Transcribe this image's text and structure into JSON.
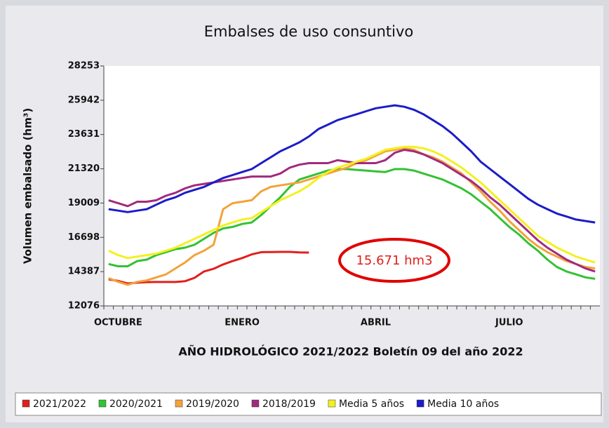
{
  "chart_data": {
    "type": "line",
    "title": "Embalses de uso consuntivo",
    "y_label": "Volumen embalsado (hm³)",
    "x_label": "AÑO HIDROLÓGICO 2021/2022 Boletín 09 del año 2022",
    "annotation": "15.671 hm3",
    "categories": [
      null,
      "OCTUBRE",
      null,
      null,
      null,
      null,
      null,
      null,
      null,
      null,
      null,
      null,
      null,
      null,
      "ENERO",
      null,
      null,
      null,
      null,
      null,
      null,
      null,
      null,
      null,
      null,
      null,
      null,
      null,
      "ABRIL",
      null,
      null,
      null,
      null,
      null,
      null,
      null,
      null,
      null,
      null,
      null,
      null,
      null,
      "JULIO",
      null,
      null,
      null,
      null,
      null,
      null,
      null,
      null,
      null
    ],
    "ylim": [
      12076,
      28253
    ],
    "yticks": [
      12076,
      14387,
      16698,
      19009,
      21320,
      23631,
      25942,
      28253
    ],
    "legend": "bottom",
    "series": [
      {
        "name": "2021/2022",
        "color": "#e0201c",
        "values": [
          13870,
          13760,
          13590,
          13640,
          13680,
          13690,
          13690,
          13690,
          13740,
          13970,
          14400,
          14580,
          14870,
          15100,
          15300,
          15550,
          15700,
          15710,
          15720,
          15720,
          15680,
          15671,
          null,
          null,
          null,
          null,
          null,
          null,
          null,
          null,
          null,
          null,
          null,
          null,
          null,
          null,
          null,
          null,
          null,
          null,
          null,
          null,
          null,
          null,
          null,
          null,
          null,
          null,
          null,
          null,
          null,
          null
        ]
      },
      {
        "name": "2020/2021",
        "color": "#33c233",
        "values": [
          14900,
          14750,
          14750,
          15100,
          15200,
          15500,
          15700,
          15900,
          16000,
          16200,
          16600,
          17000,
          17300,
          17400,
          17600,
          17700,
          18200,
          18800,
          19400,
          20100,
          20600,
          20800,
          21000,
          21200,
          21300,
          21300,
          21250,
          21200,
          21150,
          21100,
          21300,
          21300,
          21200,
          21000,
          20800,
          20600,
          20300,
          20000,
          19600,
          19100,
          18600,
          18000,
          17400,
          16900,
          16300,
          15800,
          15200,
          14700,
          14400,
          14200,
          14000,
          13900
        ]
      },
      {
        "name": "2019/2020",
        "color": "#f2a33a",
        "values": [
          13950,
          13700,
          13500,
          13700,
          13800,
          14000,
          14200,
          14600,
          15000,
          15500,
          15800,
          16200,
          18600,
          19000,
          19100,
          19200,
          19800,
          20100,
          20200,
          20300,
          20400,
          20600,
          20800,
          21000,
          21200,
          21400,
          21700,
          21900,
          22200,
          22500,
          22600,
          22700,
          22600,
          22300,
          22100,
          21800,
          21400,
          21000,
          20400,
          19800,
          19100,
          18500,
          17800,
          17200,
          16600,
          16100,
          15700,
          15400,
          15100,
          14900,
          14700,
          14600
        ]
      },
      {
        "name": "2018/2019",
        "color": "#a12a7f",
        "values": [
          19200,
          19000,
          18800,
          19100,
          19100,
          19200,
          19500,
          19700,
          20000,
          20200,
          20300,
          20400,
          20500,
          20600,
          20700,
          20800,
          20800,
          20800,
          21000,
          21400,
          21600,
          21700,
          21700,
          21700,
          21900,
          21800,
          21700,
          21700,
          21700,
          21900,
          22400,
          22600,
          22500,
          22300,
          22000,
          21700,
          21300,
          20900,
          20500,
          20000,
          19400,
          18900,
          18300,
          17700,
          17100,
          16500,
          16000,
          15600,
          15200,
          14900,
          14600,
          14400
        ]
      },
      {
        "name": "Media 5 años",
        "color": "#f4f020",
        "values": [
          15800,
          15500,
          15300,
          15400,
          15500,
          15600,
          15800,
          16000,
          16300,
          16600,
          16900,
          17200,
          17500,
          17700,
          17900,
          18000,
          18400,
          18800,
          19200,
          19500,
          19800,
          20200,
          20700,
          21100,
          21400,
          21600,
          21800,
          22000,
          22300,
          22600,
          22700,
          22800,
          22800,
          22700,
          22500,
          22200,
          21800,
          21400,
          20900,
          20400,
          19800,
          19200,
          18600,
          18000,
          17400,
          16800,
          16400,
          16000,
          15700,
          15400,
          15200,
          15000
        ]
      },
      {
        "name": "Media 10 años",
        "color": "#1c1cc8",
        "values": [
          18600,
          18500,
          18400,
          18500,
          18600,
          18900,
          19200,
          19400,
          19700,
          19900,
          20100,
          20400,
          20700,
          20900,
          21100,
          21300,
          21700,
          22100,
          22500,
          22800,
          23100,
          23500,
          24000,
          24300,
          24600,
          24800,
          25000,
          25200,
          25400,
          25500,
          25600,
          25500,
          25300,
          25000,
          24600,
          24200,
          23700,
          23100,
          22500,
          21800,
          21300,
          20800,
          20300,
          19800,
          19300,
          18900,
          18600,
          18300,
          18100,
          17900,
          17800,
          17700
        ]
      }
    ]
  }
}
